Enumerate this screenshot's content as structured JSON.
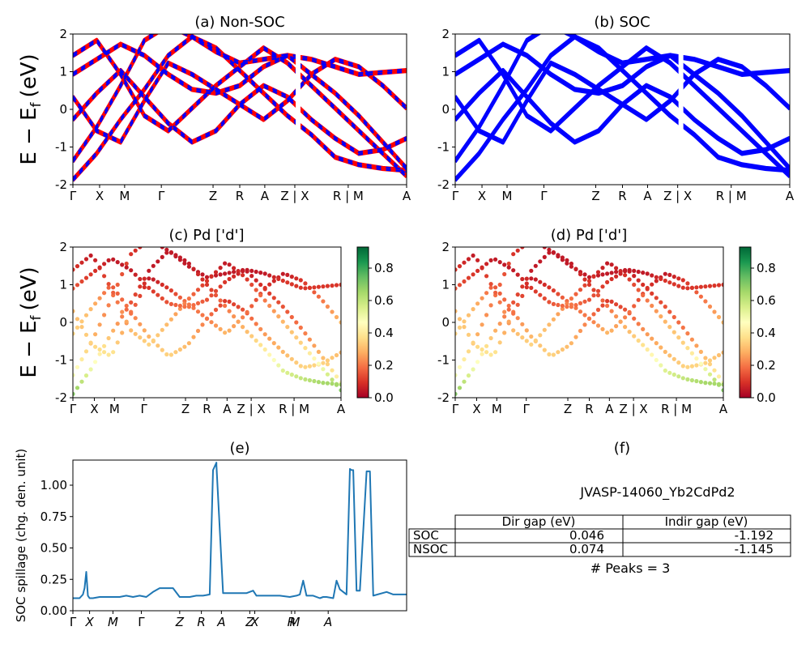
{
  "chart_data": [
    {
      "id": "a",
      "type": "line",
      "title": "(a) Non-SOC",
      "ylabel": "E − E",
      "ylabel_sub": "f",
      "ylabel_unit": "(eV)",
      "ylim": [
        -2,
        2
      ],
      "yticks": [
        2,
        1,
        0,
        -1,
        -2
      ],
      "kpath_labels": [
        "Γ",
        "X",
        "M",
        "Γ",
        "Z",
        "R",
        "A",
        "Z | X",
        "R | M",
        "A"
      ],
      "series": [
        {
          "color": "#ff0000",
          "y": [
            [
              -1.4,
              -0.5,
              0.6,
              1.8,
              2.2,
              1.9,
              1.5,
              1.2,
              1.3,
              1.4,
              0.9,
              0.4,
              -0.2,
              -0.9,
              -1.6
            ],
            [
              -0.3,
              0.4,
              1.0,
              0.3,
              -0.4,
              -0.9,
              -0.6,
              0.1,
              0.6,
              0.3,
              -0.3,
              -0.8,
              -1.2,
              -1.1,
              -0.8
            ],
            [
              0.3,
              -0.6,
              -0.9,
              0.2,
              1.2,
              0.9,
              0.5,
              0.1,
              -0.3,
              0.2,
              0.9,
              1.3,
              1.1,
              0.6,
              0.0
            ],
            [
              1.4,
              1.8,
              0.9,
              -0.2,
              -0.6,
              0.0,
              0.6,
              1.1,
              1.6,
              1.2,
              0.6,
              0.0,
              -0.6,
              -1.2,
              -1.8
            ],
            [
              -1.9,
              -1.2,
              -0.3,
              0.5,
              1.4,
              1.9,
              1.6,
              1.0,
              0.4,
              -0.2,
              -0.7,
              -1.3,
              -1.5,
              -1.6,
              -1.65
            ],
            [
              0.9,
              1.3,
              1.7,
              1.4,
              0.9,
              0.5,
              0.4,
              0.6,
              1.1,
              1.4,
              1.3,
              1.1,
              0.9,
              0.95,
              1.0
            ]
          ]
        },
        {
          "color": "#0000ff",
          "dashed": true,
          "y": [
            [
              -1.4,
              -0.5,
              0.6,
              1.8,
              2.2,
              1.9,
              1.5,
              1.2,
              1.3,
              1.4,
              0.9,
              0.4,
              -0.2,
              -0.9,
              -1.6
            ],
            [
              -0.3,
              0.4,
              1.0,
              0.3,
              -0.4,
              -0.9,
              -0.6,
              0.1,
              0.6,
              0.3,
              -0.3,
              -0.8,
              -1.2,
              -1.1,
              -0.8
            ],
            [
              0.3,
              -0.6,
              -0.9,
              0.2,
              1.2,
              0.9,
              0.5,
              0.1,
              -0.3,
              0.2,
              0.9,
              1.3,
              1.1,
              0.6,
              0.0
            ],
            [
              1.4,
              1.8,
              0.9,
              -0.2,
              -0.6,
              0.0,
              0.6,
              1.1,
              1.6,
              1.2,
              0.6,
              0.0,
              -0.6,
              -1.2,
              -1.8
            ],
            [
              -1.9,
              -1.2,
              -0.3,
              0.5,
              1.4,
              1.9,
              1.6,
              1.0,
              0.4,
              -0.2,
              -0.7,
              -1.3,
              -1.5,
              -1.6,
              -1.65
            ],
            [
              0.9,
              1.3,
              1.7,
              1.4,
              0.9,
              0.5,
              0.4,
              0.6,
              1.1,
              1.4,
              1.3,
              1.1,
              0.9,
              0.95,
              1.0
            ]
          ]
        }
      ]
    },
    {
      "id": "b",
      "type": "line",
      "title": "(b) SOC",
      "ylim": [
        -2,
        2
      ],
      "yticks": [
        2,
        1,
        0,
        -1,
        -2
      ],
      "kpath_labels": [
        "Γ",
        "X",
        "M",
        "Γ",
        "Z",
        "R",
        "A",
        "Z | X",
        "R | M",
        "A"
      ],
      "series": [
        {
          "color": "#0000ff",
          "y": [
            [
              -1.4,
              -0.5,
              0.6,
              1.8,
              2.2,
              1.9,
              1.5,
              1.2,
              1.3,
              1.4,
              0.9,
              0.4,
              -0.2,
              -0.9,
              -1.6
            ],
            [
              -0.3,
              0.4,
              1.0,
              0.3,
              -0.4,
              -0.9,
              -0.6,
              0.1,
              0.6,
              0.3,
              -0.3,
              -0.8,
              -1.2,
              -1.1,
              -0.8
            ],
            [
              0.3,
              -0.6,
              -0.9,
              0.2,
              1.2,
              0.9,
              0.5,
              0.1,
              -0.3,
              0.2,
              0.9,
              1.3,
              1.1,
              0.6,
              0.0
            ],
            [
              1.4,
              1.8,
              0.9,
              -0.2,
              -0.6,
              0.0,
              0.6,
              1.1,
              1.6,
              1.2,
              0.6,
              0.0,
              -0.6,
              -1.2,
              -1.8
            ],
            [
              -1.9,
              -1.2,
              -0.3,
              0.5,
              1.4,
              1.9,
              1.6,
              1.0,
              0.4,
              -0.2,
              -0.7,
              -1.3,
              -1.5,
              -1.6,
              -1.65
            ],
            [
              0.9,
              1.3,
              1.7,
              1.4,
              0.9,
              0.5,
              0.4,
              0.6,
              1.1,
              1.4,
              1.3,
              1.1,
              0.9,
              0.95,
              1.0
            ]
          ]
        }
      ]
    },
    {
      "id": "c",
      "type": "scatter",
      "title": "(c)  Pd ['d']",
      "ylabel": "E − E",
      "ylabel_sub": "f",
      "ylabel_unit": "(eV)",
      "ylim": [
        -2,
        2
      ],
      "yticks": [
        2,
        1,
        0,
        -1,
        -2
      ],
      "kpath_labels": [
        "Γ",
        "X",
        "M",
        "Γ",
        "Z",
        "R",
        "A",
        "Z | X",
        "R | M",
        "A"
      ],
      "colorbar": {
        "range": [
          0,
          0.93
        ],
        "ticks": [
          "0.8",
          "0.6",
          "0.4",
          "0.2",
          "0.0"
        ],
        "colormap": "RdYlGn"
      },
      "bands": [
        {
          "y": [
            -1.4,
            -0.5,
            0.6,
            1.8,
            2.2,
            1.9,
            1.5,
            1.2,
            1.3,
            1.4,
            0.9,
            0.4,
            -0.2,
            -0.9,
            -1.6
          ],
          "w": [
            0.5,
            0.3,
            0.2,
            0.1,
            0.05,
            0.05,
            0.05,
            0.05,
            0.05,
            0.05,
            0.1,
            0.15,
            0.2,
            0.3,
            0.45
          ]
        },
        {
          "y": [
            -0.3,
            0.4,
            1.0,
            0.3,
            -0.4,
            -0.9,
            -0.6,
            0.1,
            0.6,
            0.3,
            -0.3,
            -0.8,
            -1.2,
            -1.1,
            -0.8
          ],
          "w": [
            0.35,
            0.3,
            0.15,
            0.2,
            0.3,
            0.35,
            0.3,
            0.2,
            0.1,
            0.15,
            0.25,
            0.3,
            0.35,
            0.35,
            0.3
          ]
        },
        {
          "y": [
            0.3,
            -0.6,
            -0.9,
            0.2,
            1.2,
            0.9,
            0.5,
            0.1,
            -0.3,
            0.2,
            0.9,
            1.3,
            1.1,
            0.6,
            0.0
          ],
          "w": [
            0.3,
            0.35,
            0.4,
            0.2,
            0.05,
            0.1,
            0.2,
            0.2,
            0.3,
            0.2,
            0.1,
            0.05,
            0.1,
            0.2,
            0.3
          ]
        },
        {
          "y": [
            1.4,
            1.8,
            0.9,
            -0.2,
            -0.6,
            0.0,
            0.6,
            1.1,
            1.6,
            1.2,
            0.6,
            0.0,
            -0.6,
            -1.2,
            -1.8
          ],
          "w": [
            0.1,
            0.05,
            0.15,
            0.3,
            0.35,
            0.3,
            0.2,
            0.1,
            0.05,
            0.1,
            0.2,
            0.3,
            0.35,
            0.5,
            0.7
          ]
        },
        {
          "y": [
            -1.9,
            -1.2,
            -0.3,
            0.5,
            1.4,
            1.9,
            1.6,
            1.0,
            0.4,
            -0.2,
            -0.7,
            -1.3,
            -1.5,
            -1.6,
            -1.65
          ],
          "w": [
            0.7,
            0.5,
            0.3,
            0.15,
            0.05,
            0.05,
            0.05,
            0.1,
            0.2,
            0.3,
            0.4,
            0.55,
            0.6,
            0.65,
            0.65
          ]
        },
        {
          "y": [
            0.9,
            1.3,
            1.7,
            1.4,
            0.9,
            0.5,
            0.4,
            0.6,
            1.1,
            1.4,
            1.3,
            1.1,
            0.9,
            0.95,
            1.0
          ],
          "w": [
            0.15,
            0.1,
            0.05,
            0.05,
            0.1,
            0.15,
            0.2,
            0.15,
            0.1,
            0.05,
            0.05,
            0.1,
            0.1,
            0.1,
            0.1
          ]
        }
      ]
    },
    {
      "id": "d",
      "type": "scatter",
      "title": "(d) Pd ['d']",
      "ylim": [
        -2,
        2
      ],
      "yticks": [
        2,
        1,
        0,
        -1,
        -2
      ],
      "kpath_labels": [
        "Γ",
        "X",
        "M",
        "Γ",
        "Z",
        "R",
        "A",
        "Z | X",
        "R | M",
        "A"
      ],
      "colorbar": {
        "range": [
          0,
          0.93
        ],
        "ticks": [
          "0.8",
          "0.6",
          "0.4",
          "0.2",
          "0.0"
        ],
        "colormap": "RdYlGn"
      },
      "bands": [
        {
          "y": [
            -1.4,
            -0.5,
            0.6,
            1.8,
            2.2,
            1.9,
            1.5,
            1.2,
            1.3,
            1.4,
            0.9,
            0.4,
            -0.2,
            -0.9,
            -1.6
          ],
          "w": [
            0.5,
            0.3,
            0.2,
            0.1,
            0.05,
            0.05,
            0.05,
            0.05,
            0.05,
            0.05,
            0.1,
            0.15,
            0.2,
            0.3,
            0.45
          ]
        },
        {
          "y": [
            -0.3,
            0.4,
            1.0,
            0.3,
            -0.4,
            -0.9,
            -0.6,
            0.1,
            0.6,
            0.3,
            -0.3,
            -0.8,
            -1.2,
            -1.1,
            -0.8
          ],
          "w": [
            0.35,
            0.3,
            0.15,
            0.2,
            0.3,
            0.35,
            0.3,
            0.2,
            0.1,
            0.15,
            0.25,
            0.3,
            0.35,
            0.35,
            0.3
          ]
        },
        {
          "y": [
            0.3,
            -0.6,
            -0.9,
            0.2,
            1.2,
            0.9,
            0.5,
            0.1,
            -0.3,
            0.2,
            0.9,
            1.3,
            1.1,
            0.6,
            0.0
          ],
          "w": [
            0.3,
            0.35,
            0.4,
            0.2,
            0.05,
            0.1,
            0.2,
            0.2,
            0.3,
            0.2,
            0.1,
            0.05,
            0.1,
            0.2,
            0.3
          ]
        },
        {
          "y": [
            1.4,
            1.8,
            0.9,
            -0.2,
            -0.6,
            0.0,
            0.6,
            1.1,
            1.6,
            1.2,
            0.6,
            0.0,
            -0.6,
            -1.2,
            -1.8
          ],
          "w": [
            0.1,
            0.05,
            0.15,
            0.3,
            0.35,
            0.3,
            0.2,
            0.1,
            0.05,
            0.1,
            0.2,
            0.3,
            0.35,
            0.5,
            0.7
          ]
        },
        {
          "y": [
            -1.9,
            -1.2,
            -0.3,
            0.5,
            1.4,
            1.9,
            1.6,
            1.0,
            0.4,
            -0.2,
            -0.7,
            -1.3,
            -1.5,
            -1.6,
            -1.65
          ],
          "w": [
            0.7,
            0.5,
            0.3,
            0.15,
            0.05,
            0.05,
            0.05,
            0.1,
            0.2,
            0.3,
            0.4,
            0.55,
            0.6,
            0.65,
            0.65
          ]
        },
        {
          "y": [
            0.9,
            1.3,
            1.7,
            1.4,
            0.9,
            0.5,
            0.4,
            0.6,
            1.1,
            1.4,
            1.3,
            1.1,
            0.9,
            0.95,
            1.0
          ],
          "w": [
            0.15,
            0.1,
            0.05,
            0.05,
            0.1,
            0.15,
            0.2,
            0.15,
            0.1,
            0.05,
            0.05,
            0.1,
            0.1,
            0.1,
            0.1
          ]
        }
      ]
    },
    {
      "id": "e",
      "type": "line",
      "title": "(e)",
      "ylabel": "SOC spillage (chg. den. unit)",
      "ylim": [
        0,
        1.2
      ],
      "yticks": [
        "1.00",
        "0.75",
        "0.50",
        "0.25",
        "0.00"
      ],
      "xtick_labels": [
        "Γ",
        "X",
        "M",
        "Γ",
        "Z",
        "R",
        "A",
        "Z",
        "X",
        "R",
        "M",
        "A"
      ],
      "series": [
        {
          "color": "#1f77b4",
          "x": [
            0,
            0.02,
            0.03,
            0.035,
            0.04,
            0.045,
            0.05,
            0.06,
            0.08,
            0.1,
            0.12,
            0.14,
            0.16,
            0.18,
            0.2,
            0.22,
            0.24,
            0.26,
            0.27,
            0.3,
            0.32,
            0.35,
            0.37,
            0.39,
            0.41,
            0.42,
            0.43,
            0.43,
            0.45,
            0.52,
            0.54,
            0.55,
            0.565,
            0.57,
            0.58,
            0.62,
            0.65,
            0.67,
            0.68,
            0.69,
            0.7,
            0.72,
            0.74,
            0.75,
            0.76,
            0.78,
            0.79,
            0.8,
            0.82,
            0.83,
            0.835,
            0.84,
            0.85,
            0.86,
            0.88,
            0.89,
            0.9,
            0.94,
            0.96,
            1
          ],
          "y": [
            0.1,
            0.1,
            0.13,
            0.18,
            0.31,
            0.12,
            0.1,
            0.1,
            0.11,
            0.11,
            0.11,
            0.11,
            0.12,
            0.11,
            0.12,
            0.11,
            0.15,
            0.18,
            0.18,
            0.18,
            0.11,
            0.11,
            0.12,
            0.12,
            0.13,
            1.12,
            1.18,
            1.16,
            0.14,
            0.14,
            0.16,
            0.12,
            0.12,
            0.12,
            0.12,
            0.12,
            0.11,
            0.12,
            0.13,
            0.24,
            0.12,
            0.12,
            0.1,
            0.11,
            0.11,
            0.1,
            0.24,
            0.17,
            0.13,
            1.13,
            1.12,
            1.12,
            0.16,
            0.16,
            1.11,
            1.11,
            0.12,
            0.15,
            0.13,
            0.13
          ]
        }
      ]
    }
  ],
  "panel_f": {
    "title": "(f)",
    "material": "JVASP-14060_Yb2CdPd2",
    "table": {
      "columns": [
        "Dir gap (eV)",
        "Indir gap (eV)"
      ],
      "rows": [
        {
          "label": "SOC",
          "dir": "0.046",
          "indir": "-1.192"
        },
        {
          "label": "NSOC",
          "dir": "0.074",
          "indir": "-1.145"
        }
      ]
    },
    "peaks": "# Peaks = 3"
  }
}
